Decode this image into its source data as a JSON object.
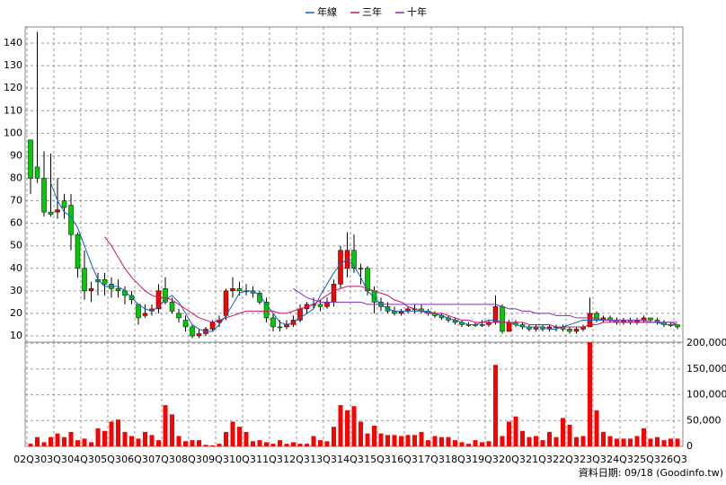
{
  "chart_data": {
    "type": "candlestick",
    "legend": "top",
    "grid": true,
    "up_color": "#ff0000",
    "down_color": "#00cc00",
    "source": "資料日期: 09/18 (Goodinfo.tw)",
    "categories": [
      "02Q3",
      null,
      null,
      null,
      "03Q3",
      null,
      null,
      null,
      "04Q3",
      null,
      null,
      null,
      "05Q3",
      null,
      null,
      null,
      "06Q3",
      null,
      null,
      null,
      "07Q3",
      null,
      null,
      null,
      "08Q3",
      null,
      null,
      null,
      "09Q3",
      null,
      null,
      null,
      "10Q3",
      null,
      null,
      null,
      "11Q3",
      null,
      null,
      null,
      "12Q3",
      null,
      null,
      null,
      "13Q3",
      null,
      null,
      null,
      "14Q3",
      null,
      null,
      null,
      "15Q3",
      null,
      null,
      null,
      "16Q3",
      null,
      null,
      null,
      "17Q3",
      null,
      null,
      null,
      "18Q3",
      null,
      null,
      null,
      "19Q3",
      null,
      null,
      null,
      "20Q3",
      null,
      null,
      null,
      "21Q3",
      null,
      null,
      null,
      "22Q3",
      null,
      null,
      null,
      "23Q3",
      null,
      null,
      null,
      "24Q3",
      null,
      null,
      null,
      "25Q3",
      null,
      null,
      null,
      "26Q3"
    ],
    "open": [
      97,
      85,
      80,
      65,
      65,
      70,
      68,
      55,
      40,
      30,
      35,
      35,
      33,
      31,
      30,
      28,
      24,
      19,
      21,
      22,
      31,
      25,
      20,
      17,
      14,
      10,
      11,
      13,
      16,
      19,
      30,
      31,
      30,
      30,
      29,
      25,
      18,
      14,
      14,
      15,
      17,
      22,
      24,
      24,
      23,
      25,
      33,
      40,
      48,
      40,
      40,
      30,
      25,
      23,
      21,
      20,
      21,
      22,
      22,
      21,
      20,
      19,
      18,
      17,
      16,
      15,
      15,
      15,
      15,
      16,
      23,
      12,
      16,
      15,
      14,
      13,
      14,
      13,
      14,
      14,
      13,
      12,
      13,
      14,
      20,
      17,
      18,
      17,
      16,
      17,
      16,
      17,
      18,
      17,
      16,
      15,
      15
    ],
    "high": [
      97,
      145,
      92,
      91,
      80,
      73,
      73,
      56,
      48,
      34,
      38,
      38,
      36,
      35,
      32,
      30,
      23,
      24,
      24,
      33,
      36,
      27,
      22,
      19,
      15,
      13,
      14,
      17,
      19,
      31,
      36,
      34,
      33,
      32,
      30,
      27,
      20,
      17,
      17,
      19,
      24,
      25,
      27,
      26,
      27,
      35,
      50,
      56,
      55,
      42,
      41,
      32,
      27,
      25,
      23,
      22,
      23,
      24,
      24,
      22,
      21,
      20,
      19,
      18,
      17,
      16,
      16,
      17,
      17,
      28,
      24,
      17,
      17,
      16,
      15,
      15,
      15,
      15,
      15,
      15,
      14,
      14,
      15,
      27,
      21,
      19,
      19,
      18,
      18,
      18,
      18,
      19,
      18,
      18,
      17,
      16,
      15
    ],
    "low": [
      73,
      78,
      63,
      63,
      62,
      62,
      48,
      36,
      26,
      25,
      28,
      28,
      27,
      27,
      24,
      24,
      15,
      18,
      19,
      20,
      24,
      20,
      16,
      12,
      9,
      9,
      10,
      12,
      14,
      17,
      27,
      28,
      28,
      27,
      24,
      16,
      12,
      12,
      13,
      14,
      16,
      20,
      22,
      21,
      22,
      23,
      31,
      36,
      38,
      33,
      28,
      20,
      21,
      20,
      19,
      19,
      20,
      20,
      20,
      19,
      18,
      17,
      16,
      15,
      14,
      14,
      14,
      14,
      14,
      15,
      11,
      12,
      14,
      13,
      12,
      12,
      12,
      12,
      12,
      12,
      11,
      11,
      12,
      14,
      16,
      16,
      16,
      15,
      15,
      15,
      15,
      16,
      16,
      15,
      14,
      14,
      13
    ],
    "close": [
      80,
      80,
      65,
      64,
      66,
      67,
      55,
      40,
      30,
      31,
      34,
      33,
      31,
      30,
      28,
      26,
      18,
      20,
      22,
      30,
      25,
      21,
      18,
      14,
      10,
      11,
      13,
      16,
      17,
      30,
      31,
      30,
      30,
      29,
      25,
      18,
      14,
      14,
      15,
      17,
      22,
      24,
      24,
      23,
      25,
      33,
      48,
      48,
      40,
      40,
      30,
      25,
      23,
      21,
      20,
      21,
      22,
      22,
      21,
      20,
      19,
      18,
      17,
      16,
      15,
      15,
      15,
      15,
      16,
      23,
      12,
      16,
      15,
      14,
      13,
      14,
      13,
      14,
      14,
      13,
      12,
      13,
      14,
      20,
      17,
      18,
      17,
      16,
      17,
      16,
      17,
      18,
      17,
      16,
      15,
      15,
      14
    ],
    "ylim": [
      7.2,
      147.2
    ],
    "yticks": [
      10,
      20,
      30,
      40,
      50,
      60,
      70,
      80,
      90,
      100,
      110,
      120,
      130,
      140
    ],
    "series": [
      {
        "name": "年線",
        "color": "#1060d0",
        "values": [
          null,
          null,
          null,
          78,
          70,
          65,
          63,
          58,
          50,
          42,
          35,
          32,
          32,
          32,
          30,
          27,
          24,
          22,
          21,
          23,
          26,
          28,
          25,
          20,
          15,
          13,
          12,
          12,
          15,
          19,
          24,
          29,
          30,
          30,
          28,
          24,
          20,
          16,
          15,
          16,
          18,
          20,
          22,
          28,
          33,
          38,
          42,
          44,
          41,
          36,
          30,
          27,
          24,
          22,
          21,
          21,
          21,
          21,
          21,
          21,
          20,
          19,
          18,
          17,
          16,
          15,
          15,
          16,
          17,
          17,
          16,
          16,
          15,
          14,
          14,
          14,
          14,
          13,
          13,
          14,
          15,
          16,
          17,
          17,
          17,
          17,
          17,
          16,
          16,
          16,
          16,
          16,
          16,
          16,
          15,
          15,
          15
        ]
      },
      {
        "name": "三年",
        "color": "#d0106a",
        "values": [
          null,
          null,
          null,
          null,
          null,
          null,
          null,
          null,
          null,
          null,
          null,
          54,
          50,
          45,
          40,
          36,
          33,
          30,
          28,
          27,
          27,
          26,
          24,
          22,
          20,
          18,
          17,
          16,
          17,
          18,
          19,
          20,
          21,
          21,
          21,
          21,
          21,
          20,
          20,
          21,
          22,
          23,
          24,
          26,
          28,
          30,
          31,
          32,
          32,
          32,
          31,
          30,
          29,
          28,
          26,
          25,
          23,
          22,
          21,
          20,
          20,
          20,
          19,
          18,
          17,
          17,
          16,
          16,
          16,
          16,
          16,
          16,
          16,
          16,
          15,
          15,
          15,
          15,
          14,
          14,
          14,
          14,
          14,
          15,
          15,
          16,
          16,
          16,
          16,
          16,
          16,
          16,
          16,
          16,
          16,
          16,
          15
        ]
      },
      {
        "name": "十年",
        "color": "#8030c0",
        "values": [
          null,
          null,
          null,
          null,
          null,
          null,
          null,
          null,
          null,
          null,
          null,
          null,
          null,
          null,
          null,
          null,
          null,
          null,
          null,
          null,
          null,
          null,
          null,
          null,
          null,
          null,
          null,
          null,
          null,
          null,
          null,
          null,
          null,
          null,
          null,
          null,
          null,
          null,
          null,
          31,
          29,
          27,
          26,
          25,
          25,
          25,
          25,
          25,
          25,
          25,
          24,
          24,
          24,
          24,
          24,
          24,
          24,
          24,
          24,
          24,
          24,
          24,
          24,
          24,
          24,
          24,
          24,
          24,
          24,
          24,
          23,
          22,
          22,
          21,
          21,
          20,
          20,
          20,
          19,
          19,
          19,
          18,
          18,
          18,
          18,
          17,
          17,
          17,
          17,
          17,
          17,
          17,
          16,
          16,
          16,
          16,
          16
        ]
      }
    ],
    "volume": {
      "color": "#ff0000",
      "ylim": [
        0,
        202000
      ],
      "yticks": [
        0,
        {
          "value": 50000,
          "label": "50,000"
        },
        {
          "value": 100000,
          "label": "100,000"
        },
        {
          "value": 150000,
          "label": "150,000"
        },
        {
          "value": 200000,
          "label": "200,000"
        }
      ],
      "values": [
        5000,
        18000,
        8000,
        18000,
        25000,
        18000,
        28000,
        12000,
        15000,
        8000,
        35000,
        30000,
        48000,
        52000,
        28000,
        20000,
        15000,
        28000,
        22000,
        12000,
        80000,
        62000,
        20000,
        10000,
        12000,
        12000,
        3000,
        2000,
        5000,
        28000,
        48000,
        38000,
        28000,
        10000,
        12000,
        8000,
        5000,
        12000,
        5000,
        8000,
        5000,
        5000,
        20000,
        12000,
        10000,
        38000,
        80000,
        70000,
        78000,
        48000,
        25000,
        40000,
        25000,
        22000,
        22000,
        20000,
        22000,
        22000,
        28000,
        12000,
        20000,
        18000,
        18000,
        12000,
        8000,
        5000,
        12000,
        8000,
        10000,
        158000,
        20000,
        48000,
        58000,
        30000,
        18000,
        20000,
        12000,
        28000,
        18000,
        55000,
        42000,
        18000,
        20000,
        202000,
        70000,
        28000,
        20000,
        15000,
        15000,
        15000,
        20000,
        35000,
        15000,
        18000,
        12000,
        15000,
        15000
      ]
    }
  }
}
